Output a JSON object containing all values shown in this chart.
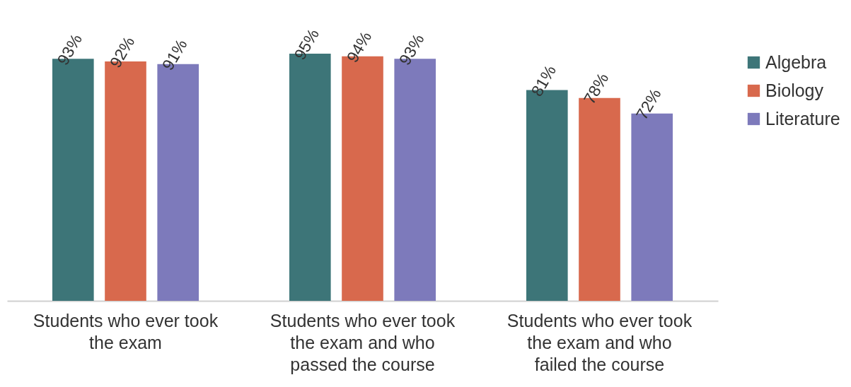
{
  "chart_data": {
    "type": "bar",
    "categories": [
      "Students who ever took the exam",
      "Students who ever took the exam and who passed the course",
      "Students who ever took the exam and who failed the course"
    ],
    "series": [
      {
        "name": "Algebra",
        "color": "#3d7578",
        "values": [
          93,
          95,
          81
        ],
        "value_labels": [
          "93%",
          "95%",
          "81%"
        ]
      },
      {
        "name": "Biology",
        "color": "#d8694d",
        "values": [
          92,
          94,
          78
        ],
        "value_labels": [
          "92%",
          "94%",
          "78%"
        ]
      },
      {
        "name": "Literature",
        "color": "#7d7abb",
        "values": [
          91,
          93,
          72
        ],
        "value_labels": [
          "91%",
          "93%",
          "72%"
        ]
      }
    ],
    "legend": "right"
  }
}
